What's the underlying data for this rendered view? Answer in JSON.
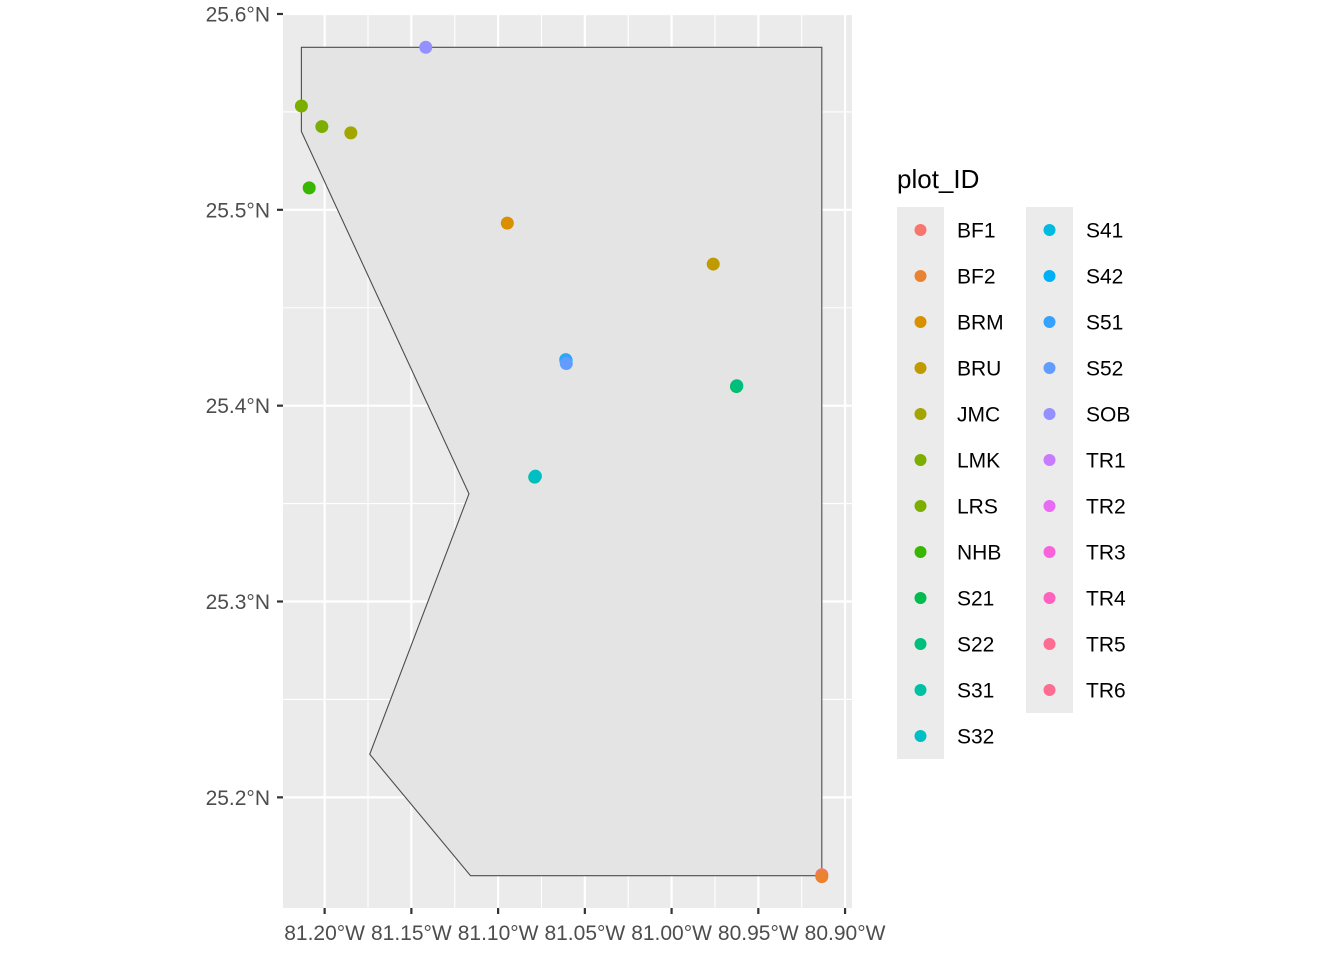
{
  "chart_data": {
    "type": "scatter",
    "title": "",
    "xlabel": "",
    "ylabel": "",
    "xlim": [
      -81.224,
      -80.896
    ],
    "ylim": [
      25.1435,
      25.6005
    ],
    "x_ticks": [
      {
        "value": -81.2,
        "label": "81.20°W"
      },
      {
        "value": -81.15,
        "label": "81.15°W"
      },
      {
        "value": -81.1,
        "label": "81.10°W"
      },
      {
        "value": -81.05,
        "label": "81.05°W"
      },
      {
        "value": -81.0,
        "label": "81.00°W"
      },
      {
        "value": -80.95,
        "label": "80.95°W"
      },
      {
        "value": -80.9,
        "label": "80.90°W"
      }
    ],
    "y_ticks": [
      {
        "value": 25.2,
        "label": "25.2°N"
      },
      {
        "value": 25.3,
        "label": "25.3°N"
      },
      {
        "value": 25.4,
        "label": "25.4°N"
      },
      {
        "value": 25.5,
        "label": "25.5°N"
      },
      {
        "value": 25.6,
        "label": "25.6°N"
      }
    ],
    "grid": true,
    "panel_background": "#ebebeb",
    "boundary_polygon": {
      "fill": "#e4e4e4",
      "stroke": "#4d4d4d",
      "points": [
        [
          -81.2134,
          25.583
        ],
        [
          -81.2134,
          25.54
        ],
        [
          -81.1168,
          25.355
        ],
        [
          -81.174,
          25.222
        ],
        [
          -81.1159,
          25.16
        ],
        [
          -80.9134,
          25.16
        ],
        [
          -80.9134,
          25.583
        ]
      ]
    },
    "legend": {
      "title": "plot_ID",
      "position": "right",
      "entries": [
        {
          "name": "BF1",
          "color": "#F8766D"
        },
        {
          "name": "BF2",
          "color": "#EA8331"
        },
        {
          "name": "BRM",
          "color": "#D89000"
        },
        {
          "name": "BRU",
          "color": "#C09B00"
        },
        {
          "name": "JMC",
          "color": "#A3A500"
        },
        {
          "name": "LMK",
          "color": "#7CAE00"
        },
        {
          "name": "LRS",
          "color": "#7CAE00"
        },
        {
          "name": "NHB",
          "color": "#39B600"
        },
        {
          "name": "S21",
          "color": "#00BB4E"
        },
        {
          "name": "S22",
          "color": "#00BF7D"
        },
        {
          "name": "S31",
          "color": "#00C1A3"
        },
        {
          "name": "S32",
          "color": "#00BFC4"
        },
        {
          "name": "S41",
          "color": "#00BAE0"
        },
        {
          "name": "S42",
          "color": "#00B0F6"
        },
        {
          "name": "S51",
          "color": "#35A2FF"
        },
        {
          "name": "S52",
          "color": "#619CFF"
        },
        {
          "name": "SOB",
          "color": "#9590FF"
        },
        {
          "name": "TR1",
          "color": "#C77CFF"
        },
        {
          "name": "TR2",
          "color": "#E76BF3"
        },
        {
          "name": "TR3",
          "color": "#FA62DB"
        },
        {
          "name": "TR4",
          "color": "#FF62BC"
        },
        {
          "name": "TR5",
          "color": "#FF6C91"
        },
        {
          "name": "TR6",
          "color": "#FF6C91"
        }
      ]
    },
    "series": [
      {
        "name": "BF1",
        "color": "#F8766D",
        "points": [
          [
            -80.9134,
            25.1605
          ]
        ]
      },
      {
        "name": "BF2",
        "color": "#EA8331",
        "points": [
          [
            -80.9134,
            25.1595
          ]
        ]
      },
      {
        "name": "BRM",
        "color": "#D89000",
        "points": [
          [
            -81.0947,
            25.4932
          ]
        ]
      },
      {
        "name": "BRU",
        "color": "#C09B00",
        "points": [
          [
            -80.976,
            25.4723
          ]
        ]
      },
      {
        "name": "JMC",
        "color": "#A3A500",
        "points": [
          [
            -81.1849,
            25.5393
          ]
        ]
      },
      {
        "name": "LMK",
        "color": "#7CAE00",
        "points": [
          [
            -81.2016,
            25.5425
          ]
        ]
      },
      {
        "name": "LRS",
        "color": "#7CAE00",
        "points": [
          [
            -81.2134,
            25.553
          ]
        ]
      },
      {
        "name": "NHB",
        "color": "#39B600",
        "points": [
          [
            -81.2089,
            25.5112
          ]
        ]
      },
      {
        "name": "S21",
        "color": "#00BB4E",
        "points": [
          [
            -80.9626,
            25.4098
          ]
        ]
      },
      {
        "name": "S22",
        "color": "#00BF7D",
        "points": [
          [
            -80.9624,
            25.4102
          ]
        ]
      },
      {
        "name": "S31",
        "color": "#00C1A3",
        "points": [
          [
            -81.0789,
            25.3635
          ]
        ]
      },
      {
        "name": "S32",
        "color": "#00BFC4",
        "points": [
          [
            -81.0785,
            25.364
          ]
        ]
      },
      {
        "name": "S41",
        "color": "#00BAE0",
        "points": [
          [
            -81.061,
            25.4235
          ]
        ]
      },
      {
        "name": "S42",
        "color": "#00B0F6",
        "points": [
          [
            -81.0608,
            25.423
          ]
        ]
      },
      {
        "name": "S51",
        "color": "#35A2FF",
        "points": [
          [
            -81.0609,
            25.4232
          ]
        ]
      },
      {
        "name": "S52",
        "color": "#619CFF",
        "points": [
          [
            -81.0607,
            25.4215
          ]
        ]
      },
      {
        "name": "SOB",
        "color": "#9590FF",
        "points": [
          [
            -81.1417,
            25.583
          ]
        ]
      }
    ]
  }
}
